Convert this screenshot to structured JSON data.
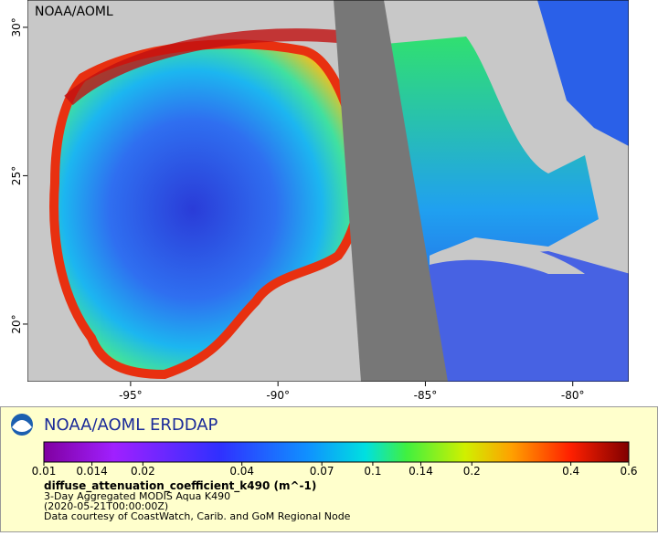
{
  "map": {
    "corner_label": "NOAA/AOML",
    "lon_ticks": [
      {
        "value": -95,
        "label": "-95°"
      },
      {
        "value": -90,
        "label": "-90°"
      },
      {
        "value": -85,
        "label": "-85°"
      },
      {
        "value": -80,
        "label": "-80°"
      }
    ],
    "lat_ticks": [
      {
        "value": 30,
        "label": "30°"
      },
      {
        "value": 25,
        "label": "25°"
      },
      {
        "value": 20,
        "label": "20°"
      }
    ],
    "lon_range": [
      -98.5,
      -78.1
    ],
    "lat_range": [
      30.92,
      18.06
    ]
  },
  "legend": {
    "title": "NOAA/AOML ERDDAP",
    "colorbar_ticks": [
      0.01,
      0.014,
      0.02,
      0.04,
      0.07,
      0.1,
      0.14,
      0.2,
      0.4,
      0.6
    ],
    "colorbar_range": [
      0.01,
      0.6
    ],
    "colorbar_scale": "log",
    "variable": "diffuse_attenuation_coefficient_k490 (m^-1)",
    "lines": [
      "3-Day Aggregated MODIS Aqua K490",
      "(2020-05-21T00:00:00Z)",
      "Data courtesy of CoastWatch, Carib. and GoM Regional Node"
    ]
  }
}
